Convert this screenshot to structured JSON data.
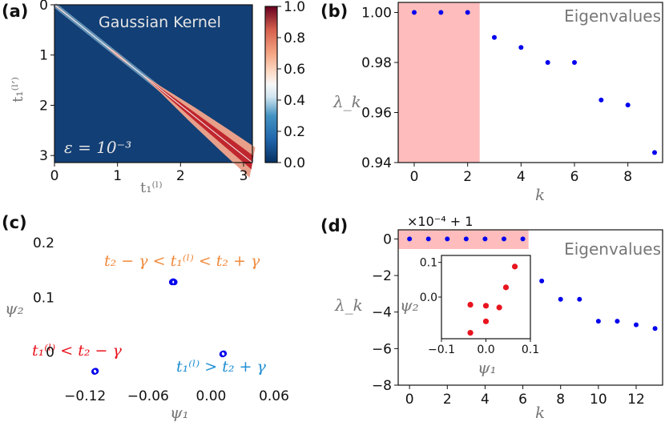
{
  "chart_data": [
    {
      "panel": "(a)",
      "type": "heatmap",
      "title": "Gaussian Kernel",
      "annotation": "ε = 10⁻³",
      "xlabel": "t₁⁽ˡ⁾",
      "ylabel": "t₁⁽ˡ′⁾",
      "xlim": [
        0,
        3.14
      ],
      "ylim": [
        0,
        3.14
      ],
      "x_ticks": [
        "0",
        "1",
        "2",
        "3"
      ],
      "y_ticks": [
        "0",
        "1",
        "2",
        "3"
      ],
      "colorbar": {
        "range": [
          0.0,
          1.0
        ],
        "ticks": [
          "1.0",
          "0.8",
          "0.6",
          "0.4",
          "0.2",
          "0.0"
        ],
        "colormap": "RdBu_r"
      },
      "kernel_band": [
        {
          "t": 0.0,
          "width": 0.015
        },
        {
          "t": 0.7,
          "width": 0.0
        },
        {
          "t": 1.0,
          "width": 0.03
        },
        {
          "t": 1.35,
          "width": 0.0
        },
        {
          "t": 1.7,
          "width": 0.06
        },
        {
          "t": 2.2,
          "width": 0.16
        },
        {
          "t": 2.7,
          "width": 0.24
        },
        {
          "t": 3.14,
          "width": 0.3
        }
      ]
    },
    {
      "panel": "(b)",
      "type": "scatter",
      "title": "Eigenvalues",
      "xlabel": "k",
      "ylabel": "λ_k",
      "x": [
        0,
        1,
        2,
        3,
        4,
        5,
        6,
        7,
        8,
        9
      ],
      "y": [
        1.0,
        1.0,
        1.0,
        0.99,
        0.986,
        0.98,
        0.98,
        0.965,
        0.963,
        0.944
      ],
      "xlim": [
        -0.6,
        9.3
      ],
      "ylim": [
        0.94,
        1.004
      ],
      "x_ticks": [
        "0",
        "2",
        "4",
        "6",
        "8"
      ],
      "y_ticks": [
        "1.00",
        "0.98",
        "0.96",
        "0.94"
      ],
      "highlight_x_range": [
        -0.6,
        2.45
      ],
      "highlight_color": "#ffbcbc",
      "point_color": "#0000ee"
    },
    {
      "panel": "(c)",
      "type": "scatter",
      "xlabel": "ψ₁",
      "ylabel": "ψ₂",
      "xlim": [
        -0.14,
        0.06
      ],
      "ylim": [
        -0.055,
        0.215
      ],
      "x_ticks": [
        "−0.12",
        "−0.06",
        "0.00",
        "0.06"
      ],
      "y_ticks": [
        "0.2",
        "0.1",
        "0"
      ],
      "points": [
        {
          "x": -0.111,
          "y": -0.036
        },
        {
          "x": -0.11,
          "y": -0.035
        },
        {
          "x": -0.037,
          "y": 0.128
        },
        {
          "x": -0.036,
          "y": 0.129
        },
        {
          "x": -0.035,
          "y": 0.128
        },
        {
          "x": 0.011,
          "y": -0.004
        },
        {
          "x": 0.012,
          "y": -0.003
        }
      ],
      "annotations": [
        {
          "label": "t₂ − γ < t₁⁽ˡ⁾ < t₂ + γ",
          "color": "#f08a3c"
        },
        {
          "label": "t₁⁽ˡ⁾ < t₂ − γ",
          "color": "#e8141e"
        },
        {
          "label": "t₁⁽ˡ⁾ > t₂ + γ",
          "color": "#1f8fd4"
        }
      ],
      "point_color": "#0000ee"
    },
    {
      "panel": "(d)",
      "type": "scatter",
      "title": "Eigenvalues",
      "offset_text": "×10⁻⁴ + 1",
      "xlabel": "k",
      "ylabel": "λ_k",
      "x": [
        0,
        1,
        2,
        3,
        4,
        5,
        6,
        7,
        8,
        9,
        10,
        11,
        12,
        13
      ],
      "y": [
        0,
        0,
        0,
        0,
        0,
        0,
        0,
        -2.3,
        -3.3,
        -3.3,
        -4.5,
        -4.5,
        -4.7,
        -4.9
      ],
      "xlim": [
        -0.6,
        13.4
      ],
      "ylim": [
        -8,
        0.5
      ],
      "x_ticks": [
        "0",
        "2",
        "4",
        "6",
        "8",
        "10",
        "12"
      ],
      "y_ticks": [
        "0",
        "−2",
        "−4",
        "−6",
        "−8"
      ],
      "highlight_x_range": [
        -0.6,
        6.3
      ],
      "highlight_color": "#ffbcbc",
      "point_color": "#0000ee",
      "inset": {
        "xlabel": "ψ₁",
        "ylabel": "ψ₂",
        "xlim": [
          -0.1,
          0.1
        ],
        "ylim": [
          -0.12,
          0.12
        ],
        "x_ticks": [
          "−0.1",
          "0.0",
          "0.1"
        ],
        "y_ticks": [
          "0.1",
          "0.0"
        ],
        "x": [
          -0.035,
          -0.035,
          0.0,
          0.0,
          0.03,
          0.045,
          0.065
        ],
        "y": [
          -0.022,
          -0.103,
          -0.025,
          -0.07,
          -0.03,
          0.028,
          0.088
        ],
        "point_color": "#e8141e"
      }
    }
  ]
}
